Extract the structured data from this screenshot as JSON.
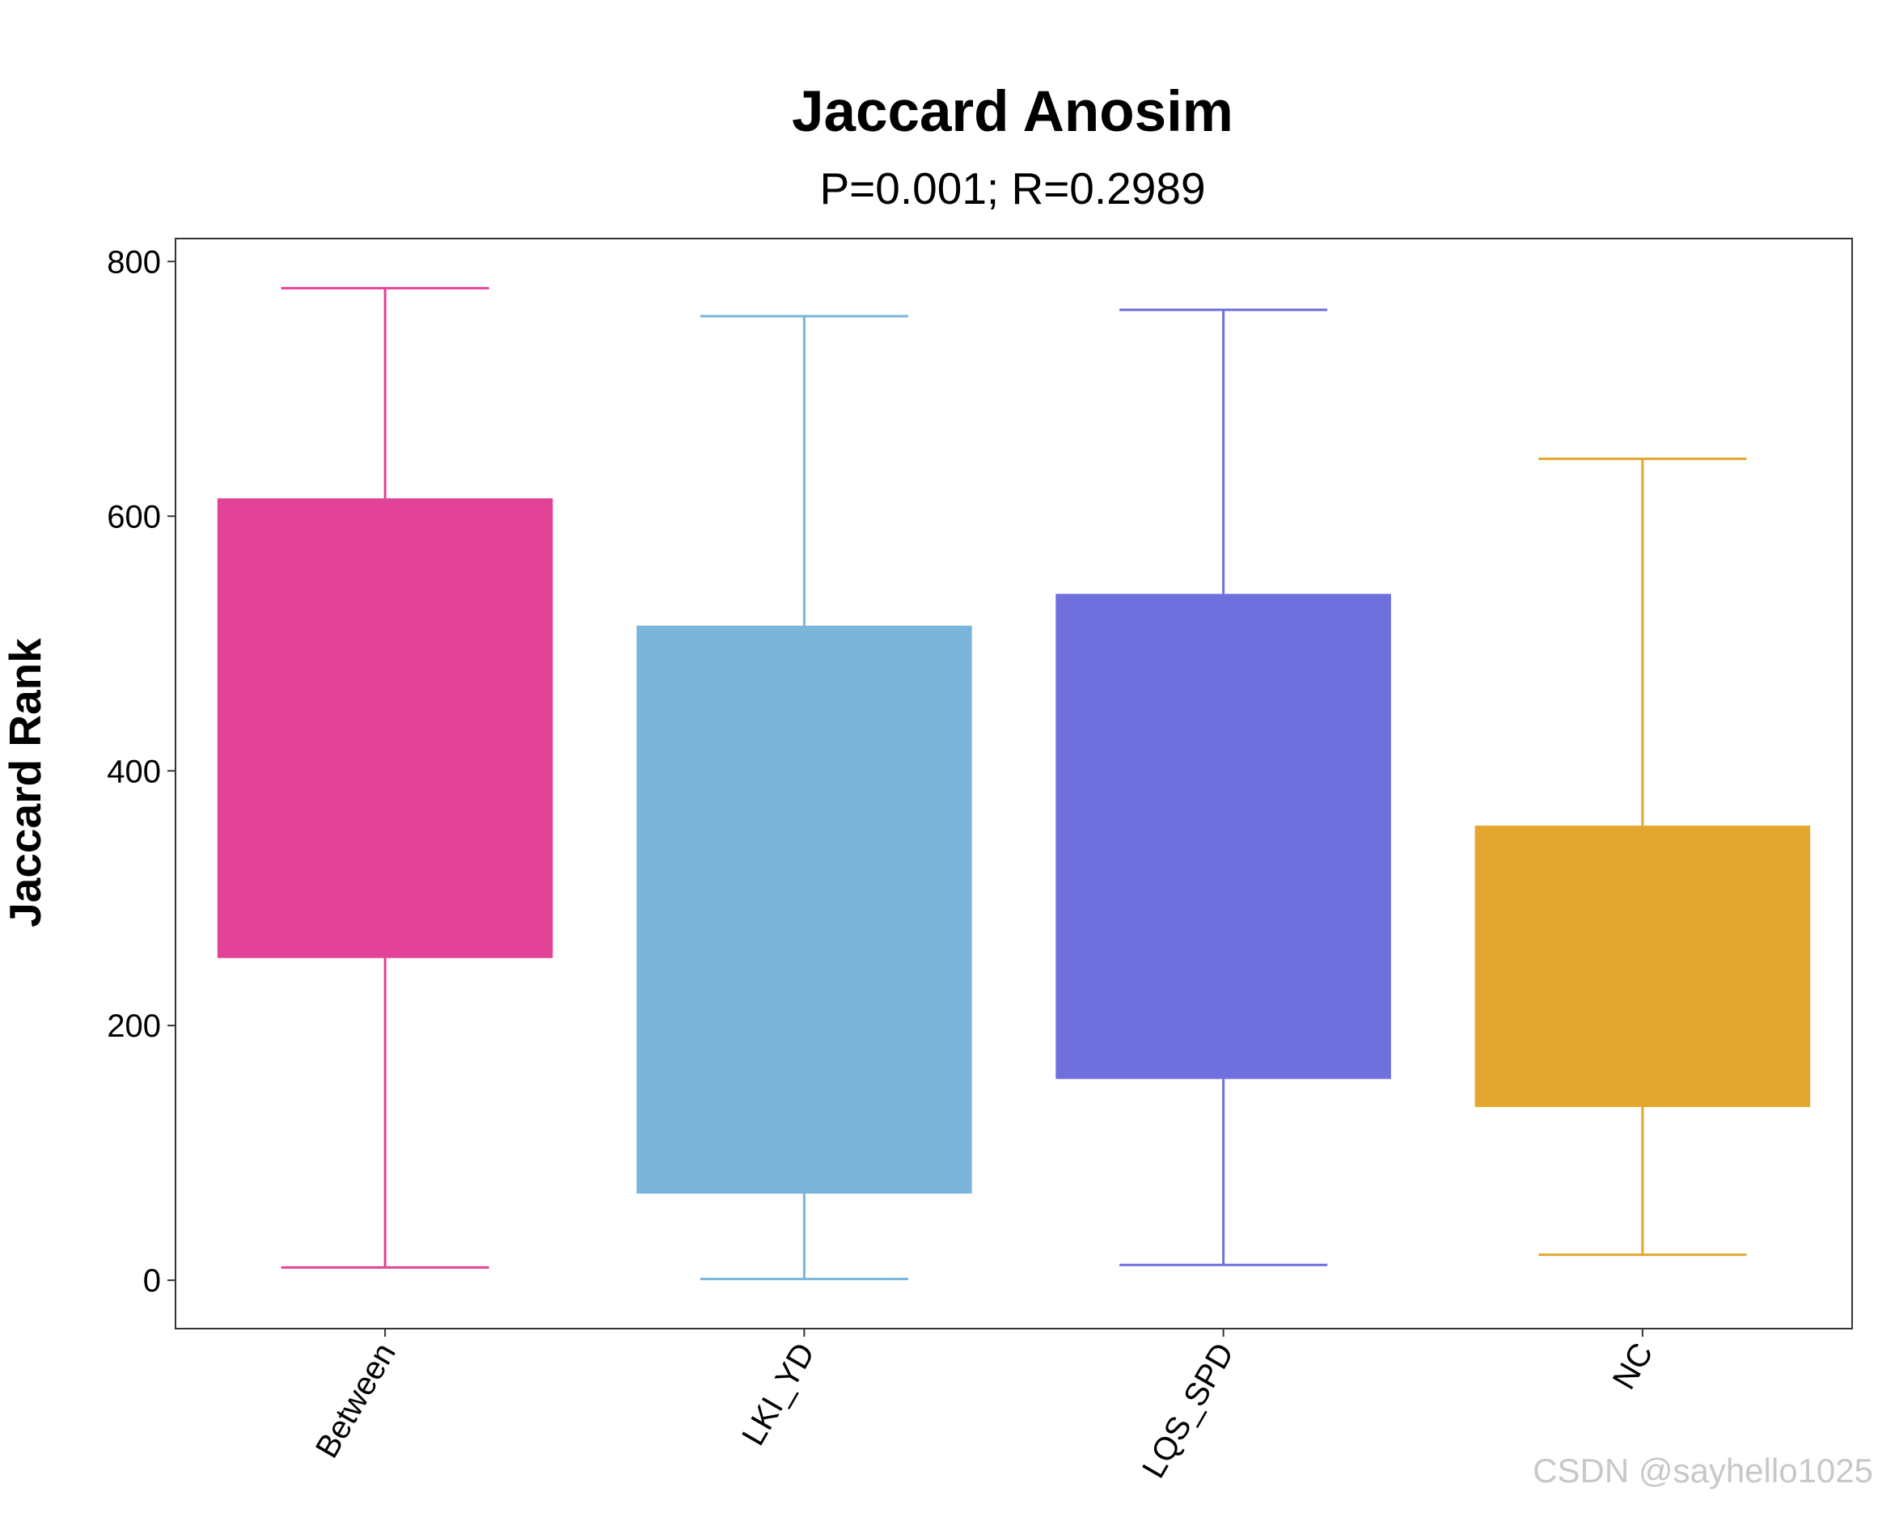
{
  "chart_data": {
    "type": "box",
    "title": "Jaccard Anosim",
    "subtitle": "P=0.001; R=0.2989",
    "xlabel": "",
    "ylabel": "Jaccard Rank",
    "ylim": [
      -38,
      818
    ],
    "yticks": [
      0,
      200,
      400,
      600,
      800
    ],
    "grid": false,
    "categories": [
      "Between",
      "LKI_YD",
      "LQS_SPD",
      "NC"
    ],
    "boxes": [
      {
        "category": "Between",
        "whisker_low": 10,
        "q1": 253,
        "q3": 614,
        "whisker_high": 779,
        "color": "#E24397"
      },
      {
        "category": "LKI_YD",
        "whisker_low": 1,
        "q1": 68,
        "q3": 514,
        "whisker_high": 757,
        "color": "#7AB4D9"
      },
      {
        "category": "LQS_SPD",
        "whisker_low": 12,
        "q1": 158,
        "q3": 539,
        "whisker_high": 762,
        "color": "#6F70DD"
      },
      {
        "category": "NC",
        "whisker_low": 20,
        "q1": 136,
        "q3": 357,
        "whisker_high": 645,
        "color": "#E3A72F"
      }
    ]
  },
  "watermark": "CSDN @sayhello1025"
}
